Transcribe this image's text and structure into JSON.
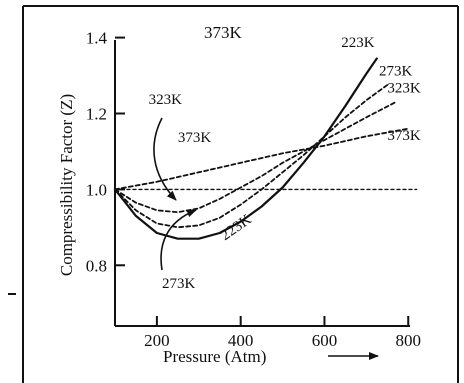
{
  "chart_data": {
    "type": "line",
    "xlabel": "Pressure (Atm)",
    "ylabel": "Compressibility Factor (Z)",
    "xlim": [
      100,
      840
    ],
    "ylim": [
      0.64,
      1.42
    ],
    "x_ticks": [
      200,
      400,
      600,
      800
    ],
    "y_ticks": [
      0.8,
      1.0,
      1.2,
      1.4
    ],
    "top_annotation": "373K",
    "series": [
      {
        "name": "223K",
        "style": "solid",
        "x": [
          100,
          150,
          200,
          250,
          300,
          350,
          400,
          450,
          500,
          550,
          600,
          650,
          700,
          725
        ],
        "y": [
          1.0,
          0.93,
          0.885,
          0.87,
          0.87,
          0.885,
          0.915,
          0.955,
          1.005,
          1.07,
          1.14,
          1.22,
          1.305,
          1.345
        ]
      },
      {
        "name": "273K",
        "style": "dashed",
        "x": [
          100,
          150,
          200,
          250,
          300,
          350,
          400,
          450,
          500,
          550,
          600,
          650,
          700,
          750
        ],
        "y": [
          1.0,
          0.945,
          0.91,
          0.9,
          0.905,
          0.925,
          0.96,
          1.0,
          1.045,
          1.09,
          1.14,
          1.19,
          1.235,
          1.275
        ]
      },
      {
        "name": "323K",
        "style": "dashed",
        "x": [
          100,
          150,
          200,
          250,
          300,
          350,
          400,
          450,
          500,
          550,
          600,
          650,
          700,
          770
        ],
        "y": [
          1.0,
          0.965,
          0.945,
          0.94,
          0.95,
          0.975,
          1.005,
          1.035,
          1.07,
          1.1,
          1.13,
          1.16,
          1.19,
          1.23
        ]
      },
      {
        "name": "373K",
        "style": "dashed",
        "x": [
          100,
          200,
          300,
          400,
          500,
          600,
          700,
          800
        ],
        "y": [
          1.0,
          1.02,
          1.045,
          1.07,
          1.095,
          1.115,
          1.14,
          1.16
        ]
      },
      {
        "name": "",
        "style": "dotted",
        "x": [
          100,
          820
        ],
        "y": [
          1.0,
          1.0
        ]
      }
    ],
    "annotations": [
      {
        "text": "223K",
        "x": 680,
        "y": 1.375
      },
      {
        "text": "273K",
        "x": 770,
        "y": 1.3
      },
      {
        "text": "323K",
        "x": 790,
        "y": 1.255
      },
      {
        "text": "373K",
        "x": 790,
        "y": 1.13
      },
      {
        "text": "323K",
        "x": 220,
        "y": 1.225
      },
      {
        "text": "373K",
        "x": 290,
        "y": 1.125
      },
      {
        "text": "223K",
        "x": 395,
        "y": 0.89
      },
      {
        "text": "273K",
        "x": 252,
        "y": 0.74
      }
    ]
  }
}
